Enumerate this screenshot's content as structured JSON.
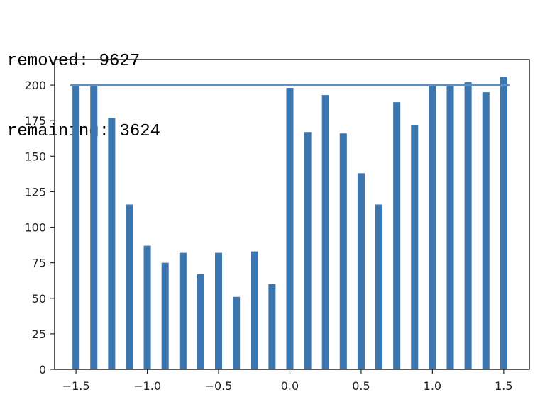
{
  "output": {
    "line1": "removed: 9627",
    "line2": "remaining: 3624"
  },
  "chart_data": {
    "type": "bar",
    "title": "",
    "xlabel": "",
    "ylabel": "",
    "xlim": [
      -1.65,
      1.68
    ],
    "ylim": [
      0,
      218
    ],
    "bar_width": 0.05,
    "bar_color": "#3b76ae",
    "line_color": "#5b8fc6",
    "x": [
      -1.5,
      -1.375,
      -1.25,
      -1.125,
      -1.0,
      -0.875,
      -0.75,
      -0.625,
      -0.5,
      -0.375,
      -0.25,
      -0.125,
      0.0,
      0.125,
      0.25,
      0.375,
      0.5,
      0.625,
      0.75,
      0.875,
      1.0,
      1.125,
      1.25,
      1.375,
      1.5
    ],
    "values": [
      200,
      200,
      177,
      116,
      87,
      75,
      82,
      67,
      82,
      51,
      83,
      60,
      198,
      167,
      193,
      166,
      138,
      116,
      188,
      172,
      200,
      200,
      202,
      195,
      206
    ],
    "hline": {
      "y": 200,
      "xmin": -1.54,
      "xmax": 1.54
    },
    "x_ticks": [
      -1.5,
      -1.0,
      -0.5,
      0.0,
      0.5,
      1.0,
      1.5
    ],
    "x_tick_labels": [
      "−1.5",
      "−1.0",
      "−0.5",
      "0.0",
      "0.5",
      "1.0",
      "1.5"
    ],
    "y_ticks": [
      0,
      25,
      50,
      75,
      100,
      125,
      150,
      175,
      200
    ],
    "y_tick_labels": [
      "0",
      "25",
      "50",
      "75",
      "100",
      "125",
      "150",
      "175",
      "200"
    ],
    "grid": false,
    "legend": "none"
  }
}
